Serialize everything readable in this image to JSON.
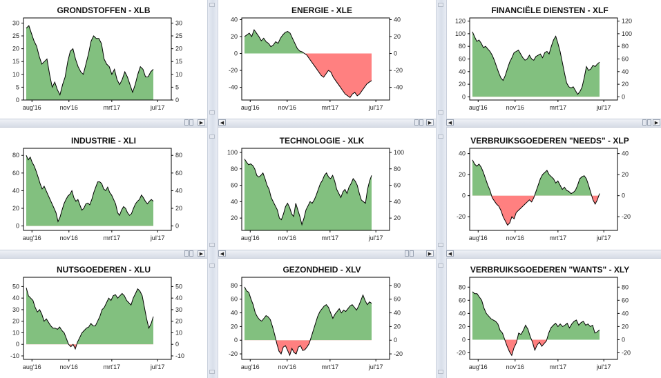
{
  "colors": {
    "positive": "#82c07f",
    "negative": "#ff8080",
    "line": "#000000",
    "axis": "#000000"
  },
  "scroll_icons": {
    "left": "◀",
    "right": "▶",
    "grip": "|||"
  },
  "charts": [
    {
      "title": "GRONDSTOFFEN - XLB",
      "ylim": [
        0,
        32
      ],
      "yticks": [
        0,
        5,
        10,
        15,
        20,
        25,
        30
      ],
      "xlabels": [
        "aug'16",
        "nov'16",
        "mrt'17",
        "jul'17"
      ],
      "values": [
        28,
        29,
        26,
        23,
        21,
        17,
        14,
        15,
        16,
        10,
        5,
        7,
        4,
        2,
        6,
        9,
        15,
        19,
        20,
        16,
        13,
        11,
        10,
        14,
        18,
        23,
        25,
        24,
        24,
        22,
        16,
        14,
        13,
        10,
        12,
        8,
        6,
        8,
        11,
        9,
        6,
        3,
        6,
        10,
        13,
        12,
        9,
        9,
        11,
        12
      ]
    },
    {
      "title": "ENERGIE - XLE",
      "ylim": [
        -55,
        42
      ],
      "yticks": [
        -40,
        -20,
        0,
        20,
        40
      ],
      "xlabels": [
        "aug'16",
        "nov'16",
        "mrt'17",
        "jul'17"
      ],
      "values": [
        20,
        22,
        24,
        20,
        28,
        24,
        20,
        15,
        18,
        14,
        12,
        8,
        10,
        14,
        12,
        18,
        22,
        25,
        26,
        24,
        18,
        12,
        6,
        3,
        2,
        0,
        -2,
        -6,
        -10,
        -14,
        -18,
        -22,
        -26,
        -28,
        -24,
        -20,
        -22,
        -28,
        -32,
        -36,
        -40,
        -44,
        -48,
        -50,
        -52,
        -48,
        -46,
        -50,
        -48,
        -44,
        -40,
        -36,
        -34,
        -32
      ]
    },
    {
      "title": "FINANCIËLE DIENSTEN - XLF",
      "ylim": [
        -5,
        125
      ],
      "yticks": [
        0,
        20,
        40,
        60,
        80,
        100,
        120
      ],
      "xlabels": [
        "aug'16",
        "nov'16",
        "mrt'17",
        "jul'17"
      ],
      "values": [
        103,
        95,
        88,
        90,
        85,
        78,
        80,
        76,
        72,
        66,
        58,
        48,
        38,
        30,
        26,
        34,
        45,
        55,
        62,
        70,
        72,
        74,
        68,
        62,
        58,
        60,
        66,
        60,
        58,
        64,
        66,
        68,
        62,
        70,
        72,
        68,
        80,
        90,
        96,
        85,
        72,
        55,
        38,
        22,
        16,
        14,
        16,
        10,
        4,
        8,
        15,
        30,
        48,
        42,
        44,
        50,
        48,
        52,
        55
      ]
    },
    {
      "title": "INDUSTRIE - XLI",
      "ylim": [
        -5,
        88
      ],
      "yticks": [
        0,
        20,
        40,
        60,
        80
      ],
      "xlabels": [
        "aug'16",
        "nov'16",
        "mrt'17",
        "jul'17"
      ],
      "values": [
        80,
        75,
        78,
        72,
        68,
        62,
        55,
        48,
        42,
        45,
        40,
        35,
        30,
        25,
        20,
        15,
        5,
        10,
        18,
        25,
        30,
        34,
        36,
        40,
        32,
        28,
        30,
        24,
        18,
        20,
        25,
        26,
        24,
        30,
        38,
        44,
        50,
        50,
        48,
        42,
        40,
        44,
        38,
        35,
        30,
        25,
        15,
        12,
        18,
        22,
        20,
        15,
        12,
        14,
        20,
        25,
        28,
        30,
        35,
        32,
        28,
        25,
        28,
        30,
        28
      ]
    },
    {
      "title": "TECHNOLOGIE - XLK",
      "ylim": [
        5,
        105
      ],
      "yticks": [
        20,
        40,
        60,
        80,
        100
      ],
      "xlabels": [
        "aug'16",
        "nov'16",
        "mrt'17",
        "jul'17"
      ],
      "values": [
        92,
        88,
        85,
        86,
        84,
        80,
        72,
        70,
        72,
        75,
        68,
        60,
        55,
        45,
        40,
        35,
        30,
        20,
        18,
        25,
        34,
        38,
        33,
        25,
        22,
        38,
        30,
        22,
        12,
        20,
        30,
        35,
        40,
        38,
        42,
        48,
        55,
        62,
        66,
        72,
        75,
        70,
        68,
        72,
        65,
        55,
        50,
        45,
        52,
        55,
        50,
        58,
        62,
        68,
        65,
        60,
        50,
        42,
        40,
        38,
        55,
        65,
        72
      ]
    },
    {
      "title": "VERBRUIKSGOEDEREN \"NEEDS\" - XLP",
      "ylim": [
        -33,
        45
      ],
      "yticks": [
        -20,
        0,
        20,
        40
      ],
      "xlabels": [
        "aug'16",
        "nov'16",
        "mrt'17",
        "jul'17"
      ],
      "values": [
        34,
        30,
        28,
        30,
        27,
        22,
        16,
        10,
        5,
        -2,
        -5,
        -8,
        -10,
        -14,
        -20,
        -24,
        -28,
        -26,
        -20,
        -22,
        -16,
        -14,
        -12,
        -10,
        -8,
        -6,
        -4,
        -6,
        -2,
        4,
        10,
        16,
        20,
        22,
        24,
        20,
        18,
        16,
        12,
        14,
        10,
        6,
        8,
        5,
        4,
        2,
        3,
        5,
        10,
        16,
        18,
        19,
        16,
        10,
        3,
        -4,
        -8,
        -4,
        2
      ]
    },
    {
      "title": "NUTSGOEDEREN - XLU",
      "ylim": [
        -13,
        58
      ],
      "yticks": [
        -10,
        0,
        10,
        20,
        30,
        40,
        50
      ],
      "xlabels": [
        "aug'16",
        "nov'16",
        "mrt'17",
        "jul'17"
      ],
      "values": [
        49,
        42,
        40,
        38,
        32,
        28,
        30,
        26,
        20,
        22,
        19,
        16,
        14,
        14,
        13,
        15,
        12,
        10,
        5,
        0,
        -2,
        0,
        -4,
        2,
        6,
        10,
        12,
        14,
        15,
        18,
        16,
        16,
        20,
        24,
        30,
        32,
        36,
        40,
        38,
        42,
        43,
        40,
        42,
        44,
        42,
        38,
        36,
        34,
        40,
        44,
        48,
        46,
        42,
        32,
        22,
        14,
        18,
        24
      ]
    },
    {
      "title": "GEZONDHEID - XLV",
      "ylim": [
        -28,
        92
      ],
      "yticks": [
        -20,
        0,
        20,
        40,
        60,
        80
      ],
      "xlabels": [
        "aug'16",
        "nov'16",
        "mrt'17",
        "jul'17"
      ],
      "values": [
        78,
        72,
        70,
        60,
        52,
        40,
        34,
        30,
        28,
        32,
        36,
        34,
        30,
        20,
        8,
        -5,
        -16,
        -20,
        -10,
        -8,
        -15,
        -22,
        -12,
        -18,
        -20,
        -10,
        -8,
        -15,
        -14,
        -10,
        -5,
        5,
        15,
        25,
        35,
        42,
        46,
        50,
        52,
        48,
        40,
        32,
        38,
        42,
        46,
        40,
        44,
        42,
        46,
        50,
        52,
        48,
        44,
        50,
        58,
        66,
        58,
        52,
        56,
        54
      ]
    },
    {
      "title": "VERBRUIKSGOEDEREN \"WANTS\" - XLY",
      "ylim": [
        -30,
        95
      ],
      "yticks": [
        -20,
        0,
        20,
        40,
        60,
        80
      ],
      "xlabels": [
        "aug'16",
        "nov'16",
        "mrt'17",
        "jul'17"
      ],
      "values": [
        73,
        70,
        70,
        65,
        60,
        48,
        40,
        36,
        32,
        30,
        28,
        24,
        14,
        10,
        0,
        -10,
        -18,
        -24,
        -12,
        -5,
        10,
        8,
        14,
        22,
        16,
        5,
        -4,
        -16,
        -8,
        -4,
        -10,
        -6,
        -2,
        10,
        18,
        22,
        25,
        20,
        24,
        20,
        22,
        25,
        18,
        24,
        28,
        30,
        22,
        26,
        28,
        22,
        24,
        20,
        22,
        10,
        12,
        15
      ]
    }
  ]
}
